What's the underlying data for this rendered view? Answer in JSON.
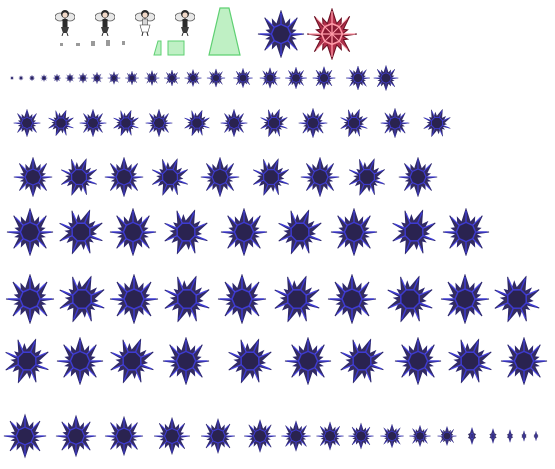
{
  "sheet": {
    "background": "#ffffff",
    "palette": {
      "star_fill": "#372e5c",
      "star_fill_dark": "#241d40",
      "star_outline": "#3d3ad0",
      "star_highlight": "#6a66ff",
      "red_star_fill": "#b1304b",
      "red_star_outline": "#ff9aa8",
      "red_star_core": "#6a0f22",
      "green_fill": "#bff0c4",
      "green_outline": "#5ed072",
      "character_dark": "#2a2a2a",
      "character_light": "#e8e8e8"
    },
    "frame_counts": {
      "character_frames": 4,
      "small_particles": 6,
      "green_pillars": 3,
      "large_stars": 2,
      "growth_row_tiny": 18,
      "row_1": 13,
      "row_2": 12,
      "row_3": 9,
      "row_4": 10,
      "row_5": 10,
      "row_6": 19
    },
    "sprites": [
      {
        "kind": "character",
        "icon": "winged-fairy-icon"
      },
      {
        "kind": "particle",
        "icon": "sparkle-icon"
      },
      {
        "kind": "pillar",
        "icon": "green-light-pillar-icon"
      },
      {
        "kind": "star",
        "icon": "spiked-star-icon",
        "color": "blue"
      },
      {
        "kind": "star",
        "icon": "spiked-star-icon",
        "color": "red"
      }
    ]
  }
}
